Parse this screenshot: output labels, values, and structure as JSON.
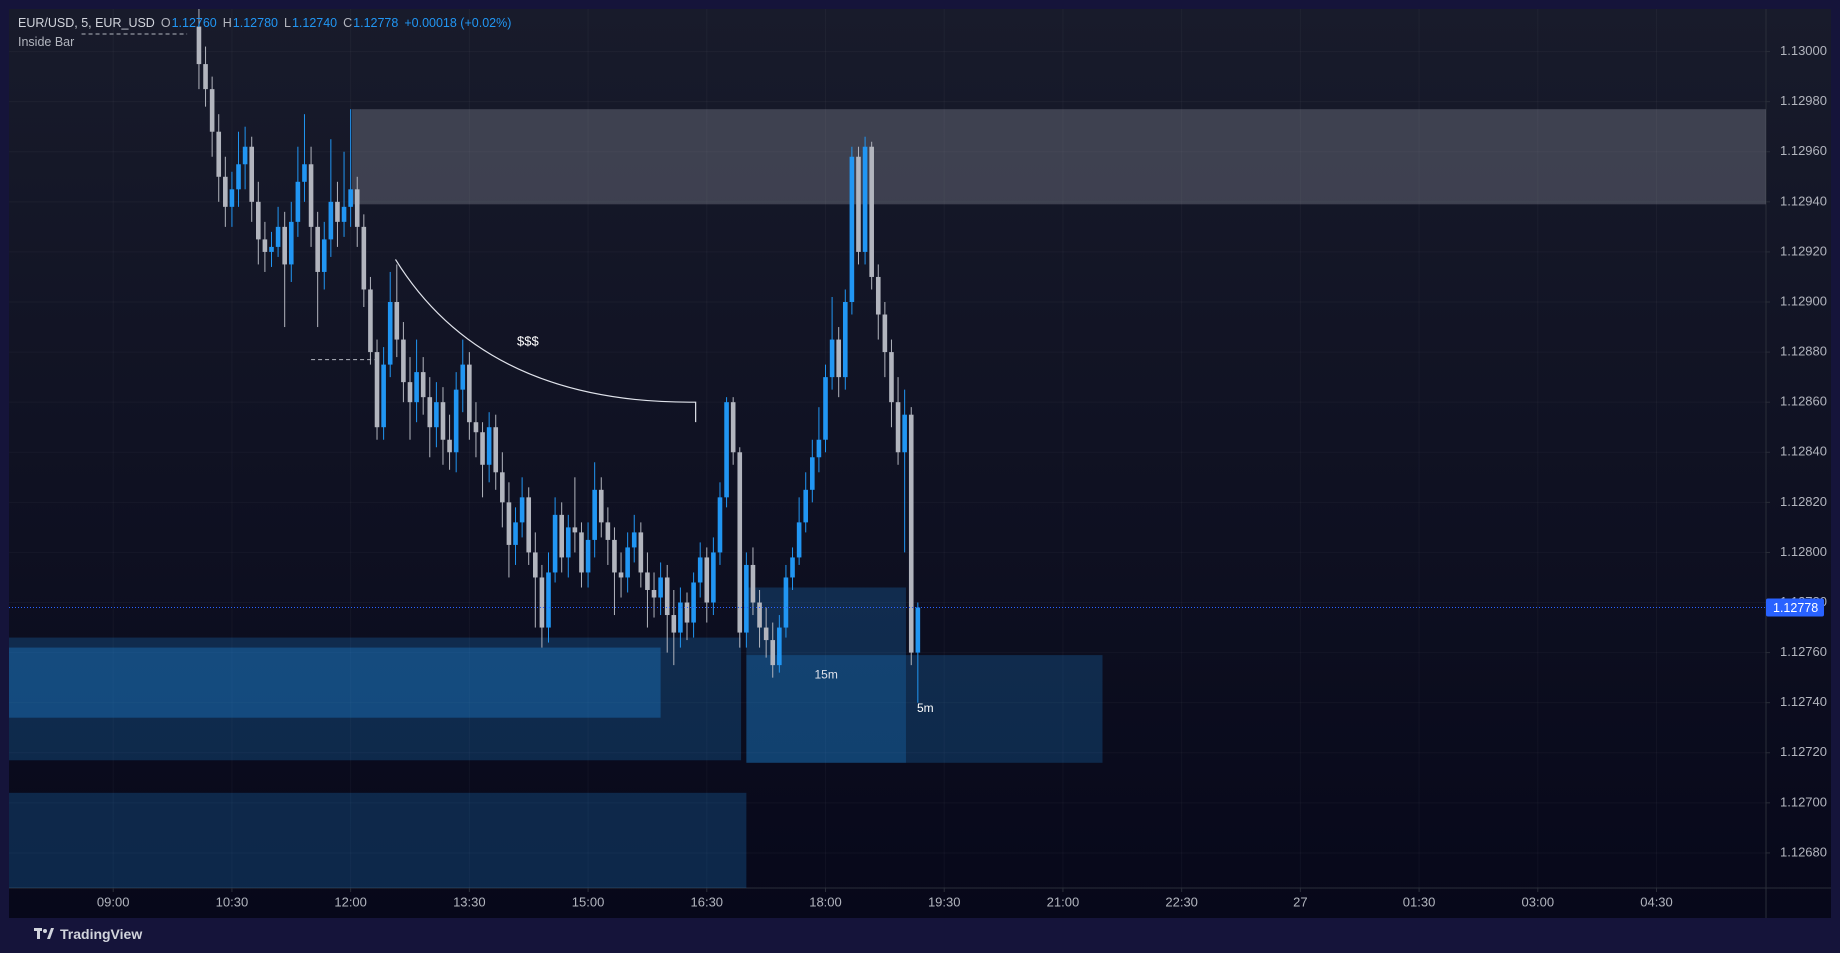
{
  "chart_data": {
    "type": "candlestick",
    "symbol": "EUR/USD, 5, EUR_USD",
    "ohlc_header": [
      {
        "key": "O",
        "value": "1.12760"
      },
      {
        "key": "H",
        "value": "1.12780"
      },
      {
        "key": "L",
        "value": "1.12740"
      },
      {
        "key": "C",
        "value": "1.12778"
      }
    ],
    "change": "+0.00018 (+0.02%)",
    "indicator": "Inside Bar",
    "up_color": "#2196f3",
    "down_color": "#b2b5be",
    "last_price_color": "#2962ff",
    "x": [
      605,
      610,
      615,
      620,
      625,
      630,
      635,
      640,
      645,
      650,
      655,
      660,
      665,
      670,
      675,
      680,
      685,
      690,
      695,
      700,
      705,
      710,
      715,
      720,
      725,
      730,
      735,
      740,
      745,
      750,
      755,
      760,
      765,
      770,
      775,
      780,
      785,
      790,
      795,
      800,
      805,
      810,
      815,
      820,
      825,
      830,
      835,
      840,
      845,
      850,
      855,
      860,
      865,
      870,
      875,
      880,
      885,
      890,
      895,
      900,
      905,
      910,
      915,
      920,
      925,
      930,
      935,
      940,
      945,
      950,
      955,
      960,
      965,
      970,
      975,
      980,
      985,
      990,
      995,
      1000,
      1005,
      1010,
      1015,
      1020,
      1025,
      1030,
      1035,
      1040,
      1045,
      1050,
      1055,
      1060,
      1065,
      1070,
      1075,
      1080,
      1085,
      1090,
      1095,
      1100,
      1105,
      1110,
      1115,
      1120,
      1125,
      1130,
      1135,
      1140,
      1145,
      1150
    ],
    "open": [
      1.1301,
      1.12995,
      1.12985,
      1.12968,
      1.1295,
      1.12938,
      1.12945,
      1.12955,
      1.12962,
      1.1294,
      1.12925,
      1.1292,
      1.12922,
      1.1293,
      1.12915,
      1.12932,
      1.12948,
      1.12955,
      1.1293,
      1.12912,
      1.12925,
      1.1294,
      1.12932,
      1.12938,
      1.12945,
      1.1293,
      1.12905,
      1.1288,
      1.1285,
      1.12875,
      1.129,
      1.12885,
      1.12868,
      1.1286,
      1.12872,
      1.12862,
      1.1285,
      1.1286,
      1.12845,
      1.1284,
      1.12865,
      1.12875,
      1.12852,
      1.12848,
      1.12835,
      1.1285,
      1.12832,
      1.1282,
      1.12803,
      1.12812,
      1.12822,
      1.128,
      1.1279,
      1.1277,
      1.12792,
      1.12815,
      1.12798,
      1.1281,
      1.12808,
      1.12792,
      1.12805,
      1.12825,
      1.12812,
      1.12805,
      1.12792,
      1.1279,
      1.12802,
      1.12808,
      1.12792,
      1.12785,
      1.12782,
      1.1279,
      1.12775,
      1.12768,
      1.1278,
      1.12772,
      1.12788,
      1.12798,
      1.1278,
      1.128,
      1.12822,
      1.1286,
      1.1284,
      1.12768,
      1.12795,
      1.1278,
      1.1277,
      1.12765,
      1.12755,
      1.1277,
      1.1279,
      1.12798,
      1.12812,
      1.12825,
      1.12838,
      1.12845,
      1.1287,
      1.12885,
      1.1287,
      1.129,
      1.12958,
      1.1292,
      1.12962,
      1.1291,
      1.12895,
      1.1288,
      1.1286,
      1.1284,
      1.12855,
      1.1276
    ],
    "high": [
      1.1302,
      1.13002,
      1.1299,
      1.12975,
      1.12958,
      1.12952,
      1.12968,
      1.1297,
      1.12966,
      1.12948,
      1.12932,
      1.12928,
      1.12938,
      1.12936,
      1.1294,
      1.12962,
      1.12975,
      1.12962,
      1.12936,
      1.12932,
      1.12965,
      1.12948,
      1.1296,
      1.12977,
      1.1295,
      1.12935,
      1.1291,
      1.12885,
      1.12882,
      1.12912,
      1.12915,
      1.12892,
      1.12878,
      1.12885,
      1.12878,
      1.1287,
      1.12868,
      1.12866,
      1.12855,
      1.12872,
      1.12885,
      1.1288,
      1.1286,
      1.12852,
      1.12856,
      1.12855,
      1.1284,
      1.12828,
      1.12818,
      1.1283,
      1.12826,
      1.12808,
      1.12795,
      1.128,
      1.12822,
      1.1282,
      1.12815,
      1.1283,
      1.12812,
      1.12812,
      1.12836,
      1.1283,
      1.12818,
      1.1281,
      1.128,
      1.12808,
      1.12815,
      1.12812,
      1.128,
      1.12792,
      1.12796,
      1.12795,
      1.12785,
      1.12786,
      1.12784,
      1.12792,
      1.12804,
      1.12802,
      1.12806,
      1.12828,
      1.12862,
      1.12862,
      1.12842,
      1.128,
      1.12802,
      1.12785,
      1.12778,
      1.12772,
      1.12775,
      1.12795,
      1.12802,
      1.12822,
      1.12832,
      1.12845,
      1.12858,
      1.12875,
      1.12902,
      1.1289,
      1.12905,
      1.12962,
      1.12962,
      1.12966,
      1.12964,
      1.12915,
      1.129,
      1.12885,
      1.1287,
      1.12865,
      1.12858,
      1.1278
    ],
    "low": [
      1.12985,
      1.12978,
      1.12958,
      1.1294,
      1.1293,
      1.1293,
      1.12938,
      1.12945,
      1.12932,
      1.12915,
      1.12912,
      1.12914,
      1.12918,
      1.1289,
      1.12908,
      1.12926,
      1.1294,
      1.12922,
      1.1289,
      1.12905,
      1.12918,
      1.12922,
      1.12926,
      1.1293,
      1.12922,
      1.12898,
      1.12875,
      1.12845,
      1.12845,
      1.1287,
      1.12878,
      1.1286,
      1.12845,
      1.12852,
      1.12855,
      1.12838,
      1.12842,
      1.12835,
      1.12833,
      1.12832,
      1.12856,
      1.12845,
      1.12838,
      1.12822,
      1.12828,
      1.12825,
      1.1281,
      1.1279,
      1.12795,
      1.12806,
      1.12795,
      1.1277,
      1.12762,
      1.12764,
      1.12788,
      1.12792,
      1.1279,
      1.128,
      1.12786,
      1.12786,
      1.12798,
      1.12806,
      1.12795,
      1.12775,
      1.12782,
      1.12784,
      1.12796,
      1.12786,
      1.1277,
      1.12774,
      1.12775,
      1.1276,
      1.12755,
      1.12762,
      1.12765,
      1.12766,
      1.12782,
      1.12772,
      1.12775,
      1.12795,
      1.12818,
      1.12835,
      1.12762,
      1.12762,
      1.12775,
      1.12762,
      1.12758,
      1.1275,
      1.12752,
      1.12766,
      1.12785,
      1.12795,
      1.12808,
      1.1282,
      1.12832,
      1.1284,
      1.12865,
      1.12862,
      1.12865,
      1.12895,
      1.12915,
      1.12915,
      1.12905,
      1.12885,
      1.1287,
      1.1285,
      1.12835,
      1.128,
      1.12755,
      1.1274
    ],
    "close": [
      1.12995,
      1.12985,
      1.12968,
      1.1295,
      1.12938,
      1.12945,
      1.12955,
      1.12962,
      1.1294,
      1.12925,
      1.1292,
      1.12922,
      1.1293,
      1.12915,
      1.12932,
      1.12948,
      1.12955,
      1.1293,
      1.12912,
      1.12925,
      1.1294,
      1.12932,
      1.12938,
      1.12945,
      1.1293,
      1.12905,
      1.1288,
      1.1285,
      1.12875,
      1.129,
      1.12885,
      1.12868,
      1.1286,
      1.12872,
      1.12862,
      1.1285,
      1.1286,
      1.12845,
      1.1284,
      1.12865,
      1.12875,
      1.12852,
      1.12848,
      1.12835,
      1.1285,
      1.12832,
      1.1282,
      1.12803,
      1.12812,
      1.12822,
      1.128,
      1.1279,
      1.1277,
      1.12792,
      1.12815,
      1.12798,
      1.1281,
      1.12808,
      1.12792,
      1.12805,
      1.12825,
      1.12812,
      1.12805,
      1.12792,
      1.1279,
      1.12802,
      1.12808,
      1.12792,
      1.12785,
      1.12782,
      1.1279,
      1.12775,
      1.12768,
      1.1278,
      1.12772,
      1.12788,
      1.12798,
      1.1278,
      1.128,
      1.12822,
      1.1286,
      1.1284,
      1.12768,
      1.12795,
      1.1278,
      1.1277,
      1.12765,
      1.12755,
      1.1277,
      1.1279,
      1.12798,
      1.12812,
      1.12825,
      1.12838,
      1.12845,
      1.1287,
      1.12885,
      1.1287,
      1.129,
      1.12958,
      1.1292,
      1.12962,
      1.1291,
      1.12895,
      1.1288,
      1.1286,
      1.1284,
      1.12855,
      1.1276,
      1.12778
    ],
    "xlim": [
      461,
      1793
    ],
    "xticks": [
      {
        "value": 540,
        "label": "09:00"
      },
      {
        "value": 630,
        "label": "10:30"
      },
      {
        "value": 720,
        "label": "12:00"
      },
      {
        "value": 810,
        "label": "13:30"
      },
      {
        "value": 900,
        "label": "15:00"
      },
      {
        "value": 990,
        "label": "16:30"
      },
      {
        "value": 1080,
        "label": "18:00"
      },
      {
        "value": 1170,
        "label": "19:30"
      },
      {
        "value": 1260,
        "label": "21:00"
      },
      {
        "value": 1350,
        "label": "22:30"
      },
      {
        "value": 1440,
        "label": "27"
      },
      {
        "value": 1530,
        "label": "01:30"
      },
      {
        "value": 1620,
        "label": "03:00"
      },
      {
        "value": 1710,
        "label": "04:30"
      }
    ],
    "ylim": [
      1.12666,
      1.13017
    ],
    "yticks": [
      {
        "value": 1.1268,
        "label": "1.12680"
      },
      {
        "value": 1.127,
        "label": "1.12700"
      },
      {
        "value": 1.1272,
        "label": "1.12720"
      },
      {
        "value": 1.1274,
        "label": "1.12740"
      },
      {
        "value": 1.1276,
        "label": "1.12760"
      },
      {
        "value": 1.1278,
        "label": "1.12780"
      },
      {
        "value": 1.128,
        "label": "1.12800"
      },
      {
        "value": 1.1282,
        "label": "1.12820"
      },
      {
        "value": 1.1284,
        "label": "1.12840"
      },
      {
        "value": 1.1286,
        "label": "1.12860"
      },
      {
        "value": 1.1288,
        "label": "1.12880"
      },
      {
        "value": 1.129,
        "label": "1.12900"
      },
      {
        "value": 1.1292,
        "label": "1.12920"
      },
      {
        "value": 1.1294,
        "label": "1.12940"
      },
      {
        "value": 1.1296,
        "label": "1.12960"
      },
      {
        "value": 1.1298,
        "label": "1.12980"
      },
      {
        "value": 1.13,
        "label": "1.13000"
      }
    ],
    "grid": true,
    "zones": [
      {
        "x": [
          721,
          1793
        ],
        "y": [
          1.12939,
          1.12977
        ],
        "color": "rgba(150,153,165,0.32)"
      },
      {
        "x": [
          461,
          1016
        ],
        "y": [
          1.12717,
          1.12766
        ],
        "color": "rgba(33,150,243,0.22)"
      },
      {
        "x": [
          461,
          955
        ],
        "y": [
          1.12734,
          1.12762
        ],
        "color": "rgba(33,150,243,0.30)"
      },
      {
        "x": [
          461,
          1020
        ],
        "y": [
          1.12666,
          1.12704
        ],
        "color": "rgba(33,150,243,0.22)"
      },
      {
        "x": [
          1020,
          1141
        ],
        "y": [
          1.12716,
          1.12786
        ],
        "color": "rgba(33,150,243,0.22)"
      },
      {
        "x": [
          1020,
          1290
        ],
        "y": [
          1.12716,
          1.12759
        ],
        "color": "rgba(33,150,243,0.22)"
      }
    ],
    "zone_labels": [
      "15m",
      "5m"
    ],
    "liquidity_curve": {
      "x": [
        754,
        977
      ],
      "y": [
        1.12917,
        1.1286
      ]
    },
    "liquidity_label": "$$$",
    "dashed_levels": [
      {
        "x": [
          690,
          738
        ],
        "y": 1.12877
      },
      {
        "x": [
          516,
          596
        ],
        "y": 1.13007
      }
    ],
    "branding": "TradingView"
  }
}
